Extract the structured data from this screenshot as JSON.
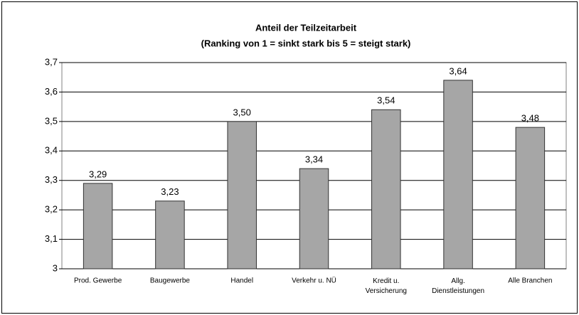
{
  "chart_data": {
    "type": "bar",
    "title": "Anteil der Teilzeitarbeit",
    "subtitle": "(Ranking von 1 = sinkt stark bis 5 = steigt stark)",
    "categories": [
      "Prod. Gewerbe",
      "Baugewerbe",
      "Handel",
      "Verkehr u. NÜ",
      "Kredit u.\nVersicherung",
      "Allg.\nDienstleistungen",
      "Alle Branchen"
    ],
    "values": [
      3.29,
      3.23,
      3.5,
      3.34,
      3.54,
      3.64,
      3.48
    ],
    "value_labels": [
      "3,29",
      "3,23",
      "3,50",
      "3,34",
      "3,54",
      "3,64",
      "3,48"
    ],
    "color": "#a6a6a6",
    "ylim": [
      3,
      3.7
    ],
    "yticks": [
      3,
      {
        "value": 3.1,
        "label": "3,1"
      },
      {
        "value": 3.2,
        "label": "3,2"
      },
      {
        "value": 3.3,
        "label": "3,3"
      },
      {
        "value": 3.4,
        "label": "3,4"
      },
      {
        "value": 3.5,
        "label": "3,5"
      },
      {
        "value": 3.6,
        "label": "3,6"
      },
      {
        "value": 3.7,
        "label": "3,7"
      }
    ],
    "grid": true
  }
}
